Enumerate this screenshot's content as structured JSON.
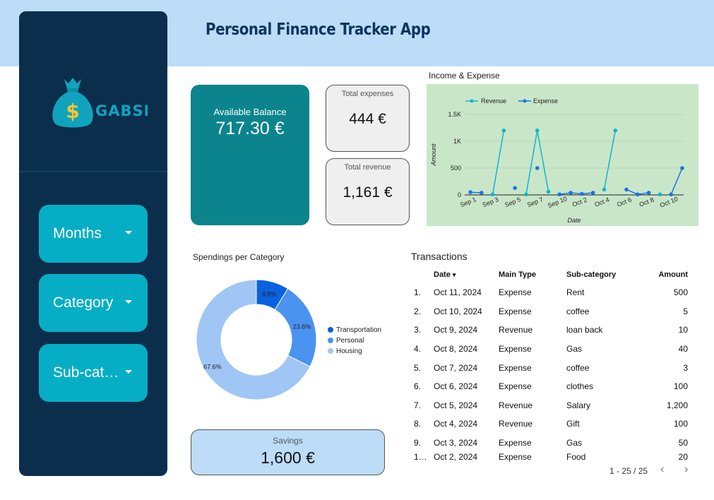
{
  "header": {
    "title": "Personal Finance Tracker App"
  },
  "sidebar": {
    "logo_text": "GABSI",
    "filters": [
      {
        "label": "Months"
      },
      {
        "label": "Category"
      },
      {
        "label": "Sub-cat…"
      }
    ]
  },
  "kpis": {
    "balance": {
      "label": "Available Balance",
      "value": "717.30 €"
    },
    "expenses": {
      "label": "Total expenses",
      "value": "444 €"
    },
    "revenue": {
      "label": "Total revenue",
      "value": "1,161 €"
    },
    "savings": {
      "label": "Savings",
      "value": "1,600 €"
    }
  },
  "colors": {
    "revenue": "#12b5cb",
    "expense": "#1a73e8",
    "transportation": "#0b62e0",
    "personal": "#4a93f0",
    "housing": "#a0c6f5"
  },
  "chart_data": [
    {
      "type": "line",
      "title": "Income & Expense",
      "xlabel": "Date",
      "ylabel": "Amount",
      "ylim": [
        0,
        1500
      ],
      "y_ticks": [
        "0",
        "500",
        "1K",
        "1.5K"
      ],
      "x_tick_labels": [
        "Sep 1",
        "Sep 3",
        "Sep 5",
        "Sep 7",
        "Sep 10",
        "Oct 2",
        "Oct 4",
        "Oct 6",
        "Oct 8",
        "Oct 10"
      ],
      "legend_position": "top",
      "series": [
        {
          "name": "Revenue",
          "values": [
            null,
            null,
            10,
            1200,
            null,
            10,
            1200,
            60,
            null,
            null,
            null,
            null,
            100,
            1200,
            null,
            null,
            null,
            10,
            null,
            null
          ]
        },
        {
          "name": "Expense",
          "values": [
            50,
            40,
            null,
            null,
            130,
            null,
            500,
            null,
            10,
            40,
            20,
            40,
            null,
            null,
            100,
            10,
            40,
            null,
            10,
            500
          ]
        }
      ]
    },
    {
      "type": "pie",
      "title": "Spendings per Category",
      "donut": true,
      "categories": [
        "Transportation",
        "Personal",
        "Housing"
      ],
      "values": [
        8.8,
        23.6,
        67.6
      ],
      "labels": [
        "8.8%",
        "23.6%",
        "67.6%"
      ],
      "legend_position": "right"
    }
  ],
  "transactions": {
    "title": "Transactions",
    "columns": [
      "Date",
      "Main Type",
      "Sub-category",
      "Amount"
    ],
    "sort_indicator": "▾",
    "rows": [
      {
        "n": "1.",
        "date": "Oct 11, 2024",
        "type": "Expense",
        "sub": "Rent",
        "amount": "500"
      },
      {
        "n": "2.",
        "date": "Oct 10, 2024",
        "type": "Expense",
        "sub": "coffee",
        "amount": "5"
      },
      {
        "n": "3.",
        "date": "Oct 9, 2024",
        "type": "Revenue",
        "sub": "loan back",
        "amount": "10"
      },
      {
        "n": "4.",
        "date": "Oct 8, 2024",
        "type": "Expense",
        "sub": "Gas",
        "amount": "40"
      },
      {
        "n": "5.",
        "date": "Oct 7, 2024",
        "type": "Expense",
        "sub": "coffee",
        "amount": "3"
      },
      {
        "n": "6.",
        "date": "Oct 6, 2024",
        "type": "Expense",
        "sub": "clothes",
        "amount": "100"
      },
      {
        "n": "7.",
        "date": "Oct 5, 2024",
        "type": "Revenue",
        "sub": "Salary",
        "amount": "1,200"
      },
      {
        "n": "8.",
        "date": "Oct 4, 2024",
        "type": "Revenue",
        "sub": "Gift",
        "amount": "100"
      },
      {
        "n": "9.",
        "date": "Oct 3, 2024",
        "type": "Expense",
        "sub": "Gas",
        "amount": "50"
      },
      {
        "n": "1…",
        "date": "Oct 2, 2024",
        "type": "Expense",
        "sub": "Food",
        "amount": "20"
      }
    ],
    "pagination": {
      "text": "1 - 25 / 25",
      "prev_icon": "chevron-left-icon",
      "next_icon": "chevron-right-icon"
    }
  }
}
